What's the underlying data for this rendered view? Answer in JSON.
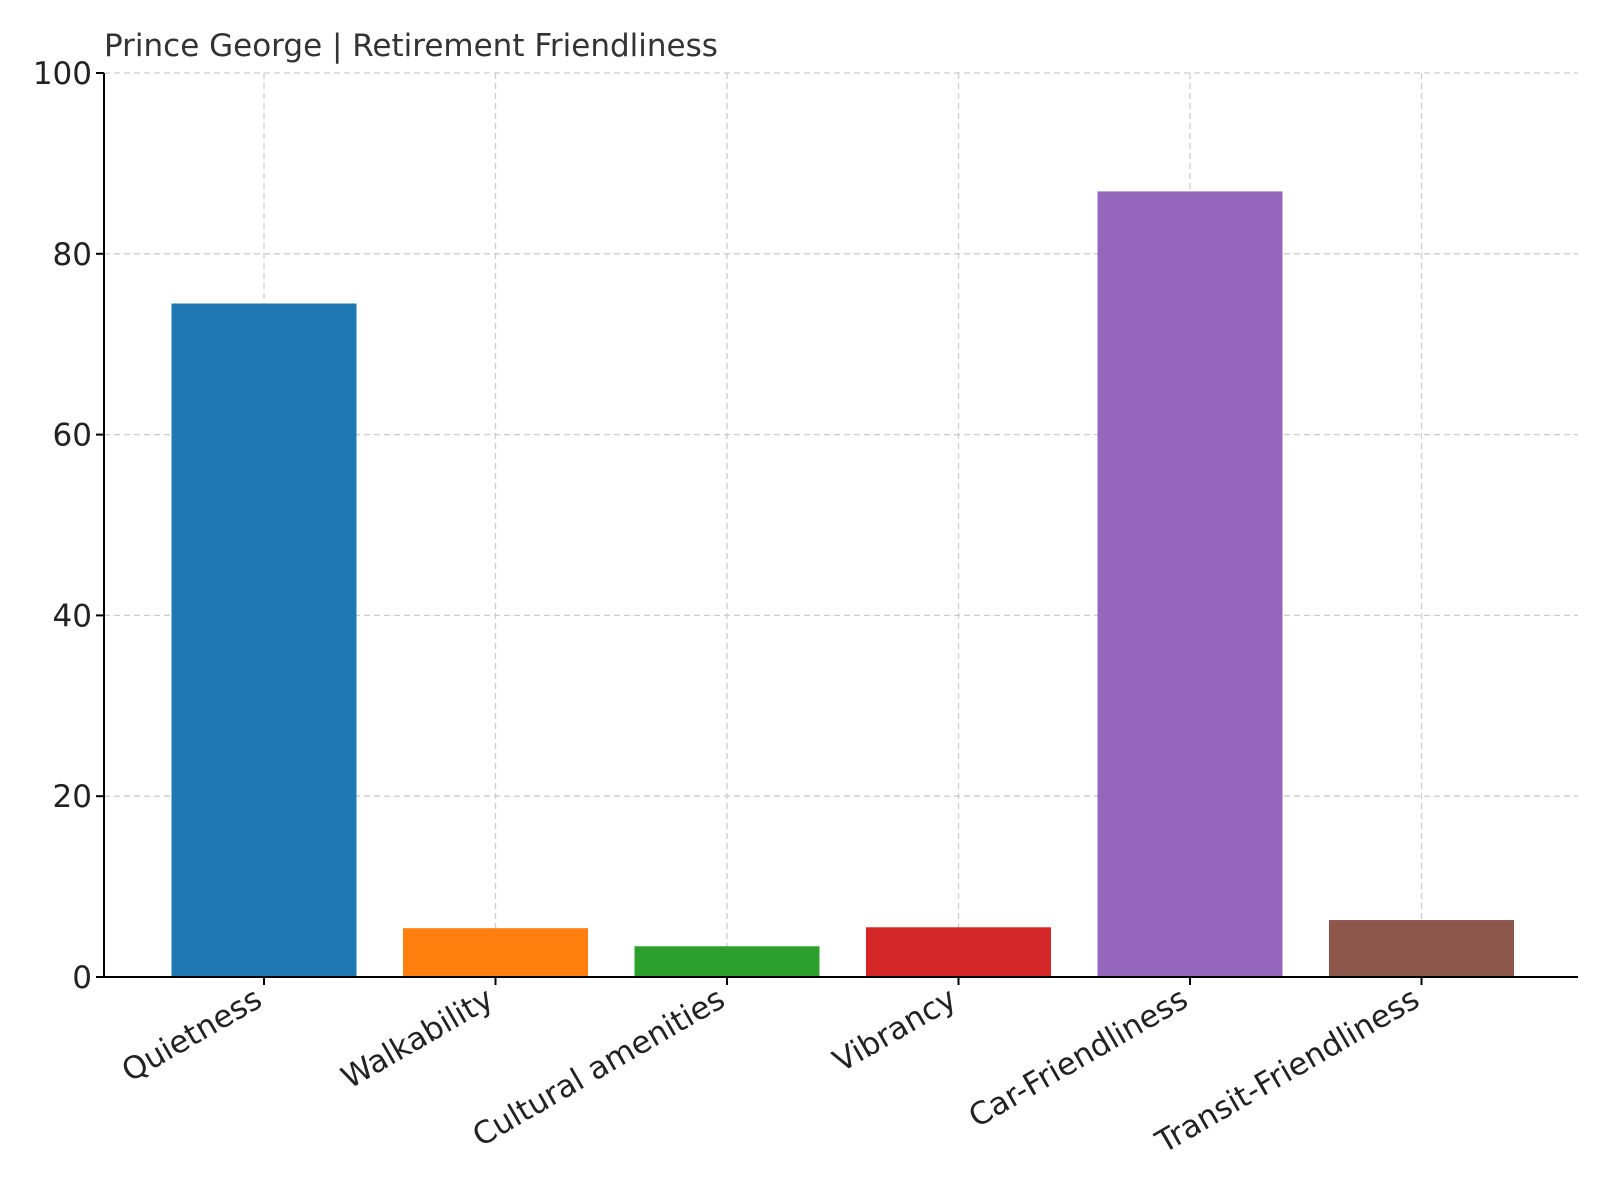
{
  "chart_data": {
    "type": "bar",
    "title": "Prince George | Retirement Friendliness",
    "xlabel": "",
    "ylabel": "",
    "categories": [
      "Quietness",
      "Walkability",
      "Cultural amenities",
      "Vibrancy",
      "Car-Friendliness",
      "Transit-Friendliness"
    ],
    "values": [
      74.5,
      5.4,
      3.4,
      5.5,
      86.9,
      6.3
    ],
    "colors": [
      "#1f77b4",
      "#ff7f0e",
      "#2ca02c",
      "#d62728",
      "#9467bd",
      "#8c564b"
    ],
    "ylim": [
      0,
      100
    ],
    "yticks": [
      0,
      20,
      40,
      60,
      80,
      100
    ],
    "grid": true,
    "legend": "none"
  }
}
